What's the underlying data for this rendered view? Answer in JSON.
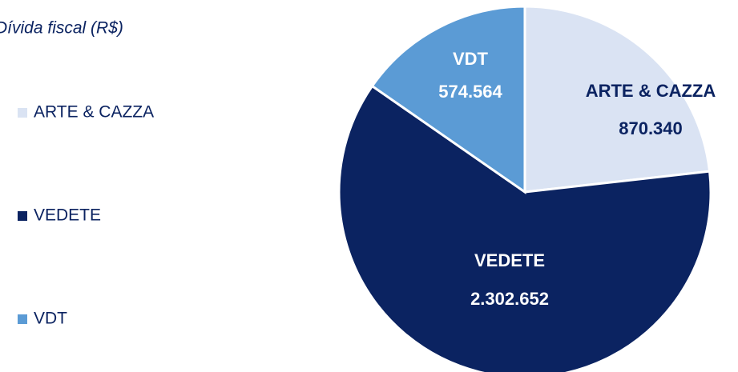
{
  "chart_data": {
    "type": "pie",
    "title": "Dívida fiscal (R$)",
    "categories": [
      "ARTE & CAZZA",
      "VEDETE",
      "VDT"
    ],
    "values": [
      870340,
      2302652,
      574564
    ],
    "value_labels": [
      "870.340",
      "2.302.652",
      "574.564"
    ],
    "colors": [
      "#dae3f3",
      "#0b2361",
      "#5b9bd5"
    ],
    "legend": "left"
  }
}
